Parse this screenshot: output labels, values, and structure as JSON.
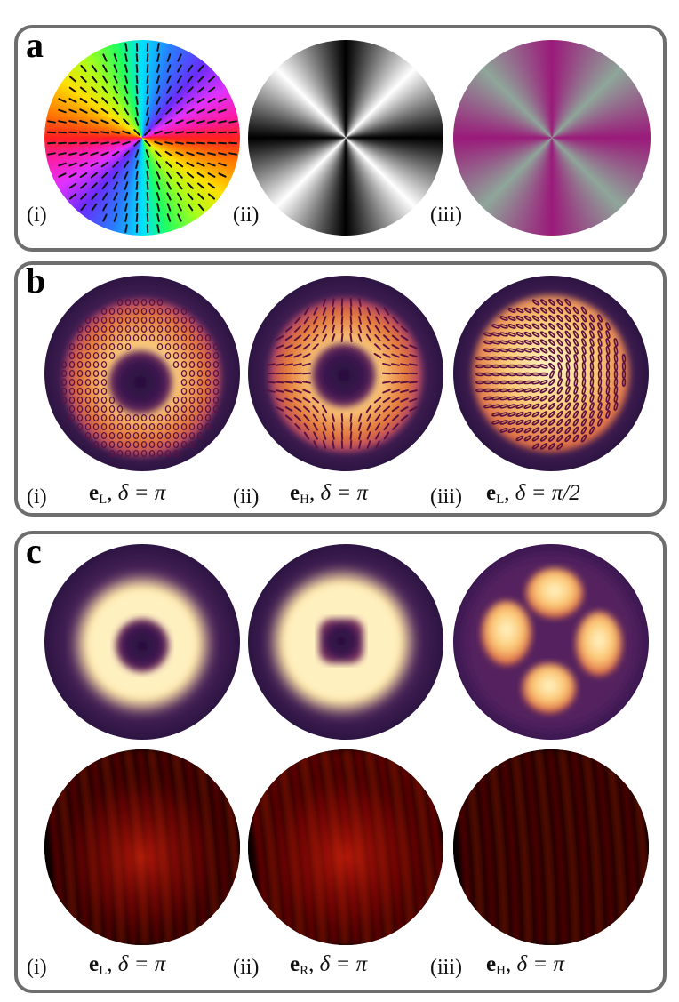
{
  "panels": {
    "a": {
      "label": "a",
      "items": [
        {
          "roman": "(i)",
          "content": "vector-field"
        },
        {
          "roman": "(ii)",
          "content": "grayscale-pattern"
        },
        {
          "roman": "(iii)",
          "content": "magenta-green-pattern"
        }
      ]
    },
    "b": {
      "label": "b",
      "items": [
        {
          "roman": "(i)",
          "vec": "e",
          "sub": "L",
          "delta": "δ = π"
        },
        {
          "roman": "(ii)",
          "vec": "e",
          "sub": "H",
          "delta": "δ = π"
        },
        {
          "roman": "(iii)",
          "vec": "e",
          "sub": "L",
          "delta": "δ = π/2"
        }
      ]
    },
    "c": {
      "label": "c",
      "items": [
        {
          "roman": "(i)",
          "vec": "e",
          "sub": "L",
          "delta": "δ = π"
        },
        {
          "roman": "(ii)",
          "vec": "e",
          "sub": "R",
          "delta": "δ = π"
        },
        {
          "roman": "(iii)",
          "vec": "e",
          "sub": "H",
          "delta": "δ = π"
        }
      ]
    }
  },
  "colors": {
    "frame": "#6e6e6e",
    "inferno_dark": "#1b0a2e",
    "inferno_mid": "#8a2a6a",
    "inferno_bright": "#ffe8a8",
    "fringe_red": "#ff2a10",
    "magenta": "#9a1a7a",
    "sage": "#8fa69a"
  }
}
